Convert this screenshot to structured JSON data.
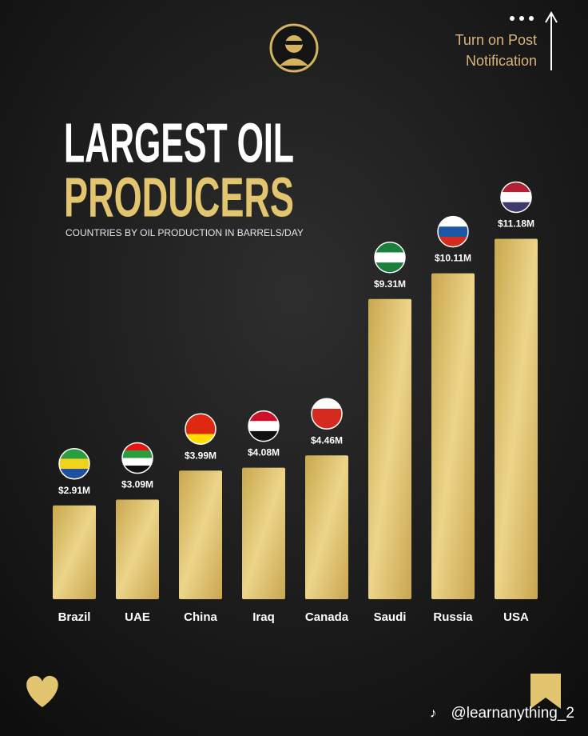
{
  "chart_data": {
    "type": "bar",
    "title": [
      "LARGEST OIL",
      "PRODUCERS"
    ],
    "subtitle": "COUNTRIES BY OIL PRODUCTION IN BARRELS/DAY",
    "categories": [
      "Brazil",
      "UAE",
      "China",
      "Iraq",
      "Canada",
      "Saudi",
      "Russia",
      "USA"
    ],
    "values": [
      2.91,
      3.09,
      3.99,
      4.08,
      4.46,
      9.31,
      10.11,
      11.18
    ],
    "value_labels": [
      "$2.91M",
      "$3.09M",
      "$3.99M",
      "$4.08M",
      "$4.46M",
      "$9.31M",
      "$10.11M",
      "$11.18M"
    ],
    "color": "#e2c56e"
  },
  "notification": [
    "Turn on Post",
    "Notification"
  ],
  "handle": "@learnanything_2"
}
